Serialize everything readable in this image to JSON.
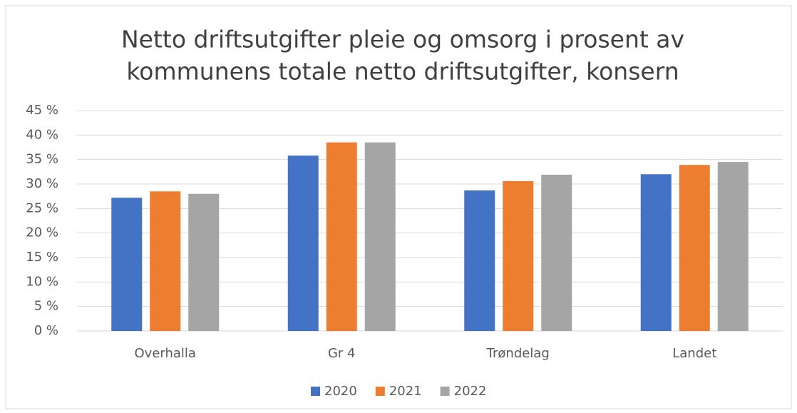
{
  "chart_data": {
    "type": "bar",
    "title": [
      "Netto driftsutgifter pleie og omsorg i prosent av",
      "kommunens totale netto driftsutgifter, konsern"
    ],
    "categories": [
      "Overhalla",
      "Gr 4",
      "Trøndelag",
      "Landet"
    ],
    "series": [
      {
        "name": "2020",
        "color": "#4472c4",
        "values": [
          27.2,
          35.8,
          28.7,
          32.0
        ]
      },
      {
        "name": "2021",
        "color": "#ed7d31",
        "values": [
          28.5,
          38.5,
          30.6,
          33.9
        ]
      },
      {
        "name": "2022",
        "color": "#a5a5a5",
        "values": [
          28.0,
          38.5,
          31.9,
          34.5
        ]
      }
    ],
    "ylim": [
      0,
      45
    ],
    "yticks": [
      {
        "value": 0,
        "label": "0 %"
      },
      {
        "value": 5,
        "label": "5 %"
      },
      {
        "value": 10,
        "label": "10 %"
      },
      {
        "value": 15,
        "label": "15 %"
      },
      {
        "value": 20,
        "label": "20 %"
      },
      {
        "value": 25,
        "label": "25 %"
      },
      {
        "value": 30,
        "label": "30 %"
      },
      {
        "value": 35,
        "label": "35 %"
      },
      {
        "value": 40,
        "label": "40 %"
      },
      {
        "value": 45,
        "label": "45 %"
      }
    ],
    "grid": true,
    "legend": "bottom"
  }
}
